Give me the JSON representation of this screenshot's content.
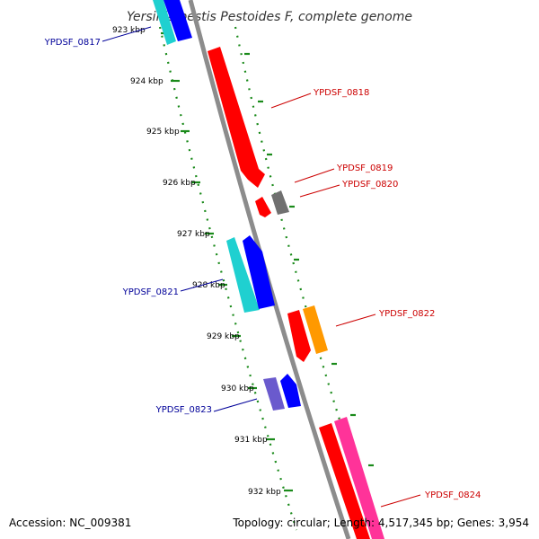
{
  "title": "Yersinia pestis Pestoides F, complete genome",
  "footer": {
    "accession": "Accession: NC_009381",
    "summary": "Topology: circular; Length: 4,517,345 bp; Genes: 3,954"
  },
  "colors": {
    "backbone": "#8c8c8c",
    "tick": "#1a8a1a",
    "forward_label": "#cc0000",
    "reverse_label": "#000099",
    "gene_red": "#ff0000",
    "gene_blue": "#0000ff",
    "gene_cyan": "#1fd0d0",
    "gene_gray": "#707070",
    "gene_orange": "#ff9900",
    "gene_pink": "#ff3399",
    "gene_purple": "#6a5acd"
  },
  "kbp_ticks": [
    "923 kbp",
    "924 kbp",
    "925 kbp",
    "926 kbp",
    "927 kbp",
    "928 kbp",
    "929 kbp",
    "930 kbp",
    "931 kbp",
    "932 kbp"
  ],
  "gene_labels": [
    {
      "id": "YPDSF_0817",
      "strand": "reverse"
    },
    {
      "id": "YPDSF_0818",
      "strand": "forward"
    },
    {
      "id": "YPDSF_0819",
      "strand": "forward"
    },
    {
      "id": "YPDSF_0820",
      "strand": "forward"
    },
    {
      "id": "YPDSF_0821",
      "strand": "reverse"
    },
    {
      "id": "YPDSF_0822",
      "strand": "forward"
    },
    {
      "id": "YPDSF_0823",
      "strand": "reverse"
    },
    {
      "id": "YPDSF_0824",
      "strand": "forward"
    }
  ]
}
